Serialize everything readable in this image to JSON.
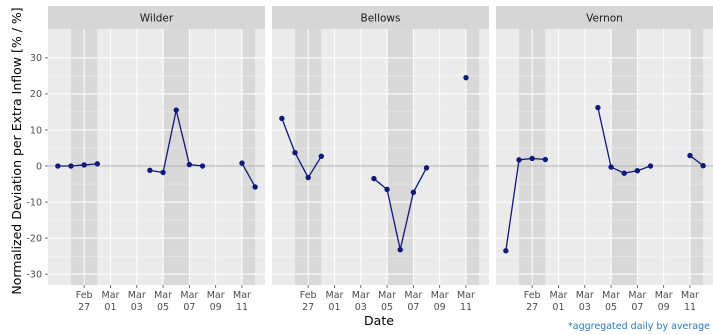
{
  "chart_data": {
    "type": "line",
    "xlabel": "Date",
    "ylabel": "Normalized Deviation per Extra Inflow [% / %]",
    "ylim": [
      -33,
      38
    ],
    "xlim": [
      "2025-02-25",
      "2025-03-12"
    ],
    "y_ticks": [
      -30,
      -20,
      -10,
      0,
      10,
      20,
      30
    ],
    "x_ticks": [
      {
        "date": "2025-02-27",
        "line1": "Feb",
        "line2": "27"
      },
      {
        "date": "2025-03-01",
        "line1": "Mar",
        "line2": "01"
      },
      {
        "date": "2025-03-03",
        "line1": "Mar",
        "line2": "03"
      },
      {
        "date": "2025-03-05",
        "line1": "Mar",
        "line2": "05"
      },
      {
        "date": "2025-03-07",
        "line1": "Mar",
        "line2": "07"
      },
      {
        "date": "2025-03-09",
        "line1": "Mar",
        "line2": "09"
      },
      {
        "date": "2025-03-11",
        "line1": "Mar",
        "line2": "11"
      }
    ],
    "shaded_bands": [
      {
        "start": "2025-02-26",
        "end": "2025-02-28"
      },
      {
        "start": "2025-03-05",
        "end": "2025-03-07"
      },
      {
        "start": "2025-03-11",
        "end": "2025-03-12"
      }
    ],
    "reference_line": 0,
    "grid": true,
    "colors": {
      "line": "#0d1a7a",
      "panel_background": "#ebebeb",
      "shaded_band": "#d9d9d9",
      "strip_background": "#d6d6d6",
      "zero_line": "#b3b3b3"
    },
    "panels": [
      {
        "name": "Wilder",
        "segments": [
          [
            {
              "x": "2025-02-25",
              "y": 0
            },
            {
              "x": "2025-02-26",
              "y": 0
            },
            {
              "x": "2025-02-27",
              "y": 0.3
            },
            {
              "x": "2025-02-28",
              "y": 0.6
            }
          ],
          [
            {
              "x": "2025-03-04",
              "y": -1.2
            },
            {
              "x": "2025-03-05",
              "y": -1.8
            },
            {
              "x": "2025-03-06",
              "y": 15.5
            },
            {
              "x": "2025-03-07",
              "y": 0.4
            },
            {
              "x": "2025-03-08",
              "y": 0
            }
          ],
          [
            {
              "x": "2025-03-11",
              "y": 0.8
            },
            {
              "x": "2025-03-12",
              "y": -5.8
            }
          ]
        ]
      },
      {
        "name": "Bellows",
        "segments": [
          [
            {
              "x": "2025-02-25",
              "y": 13.2
            },
            {
              "x": "2025-02-26",
              "y": 3.7
            },
            {
              "x": "2025-02-27",
              "y": -3.2
            },
            {
              "x": "2025-02-28",
              "y": 2.7
            }
          ],
          [
            {
              "x": "2025-03-04",
              "y": -3.5
            },
            {
              "x": "2025-03-05",
              "y": -6.5
            },
            {
              "x": "2025-03-06",
              "y": -23.2
            },
            {
              "x": "2025-03-07",
              "y": -7.3
            },
            {
              "x": "2025-03-08",
              "y": -0.5
            }
          ],
          [
            {
              "x": "2025-03-11",
              "y": 24.5
            }
          ]
        ]
      },
      {
        "name": "Vernon",
        "segments": [
          [
            {
              "x": "2025-02-25",
              "y": -23.5
            },
            {
              "x": "2025-02-26",
              "y": 1.7
            },
            {
              "x": "2025-02-27",
              "y": 2.1
            },
            {
              "x": "2025-02-28",
              "y": 1.8
            }
          ],
          [
            {
              "x": "2025-03-04",
              "y": 16.2
            },
            {
              "x": "2025-03-05",
              "y": -0.3
            },
            {
              "x": "2025-03-06",
              "y": -2.0
            },
            {
              "x": "2025-03-07",
              "y": -1.3
            },
            {
              "x": "2025-03-08",
              "y": 0
            }
          ],
          [
            {
              "x": "2025-03-11",
              "y": 2.9
            },
            {
              "x": "2025-03-12",
              "y": 0.1
            }
          ]
        ]
      }
    ]
  },
  "footnote": "*aggregated daily by average"
}
